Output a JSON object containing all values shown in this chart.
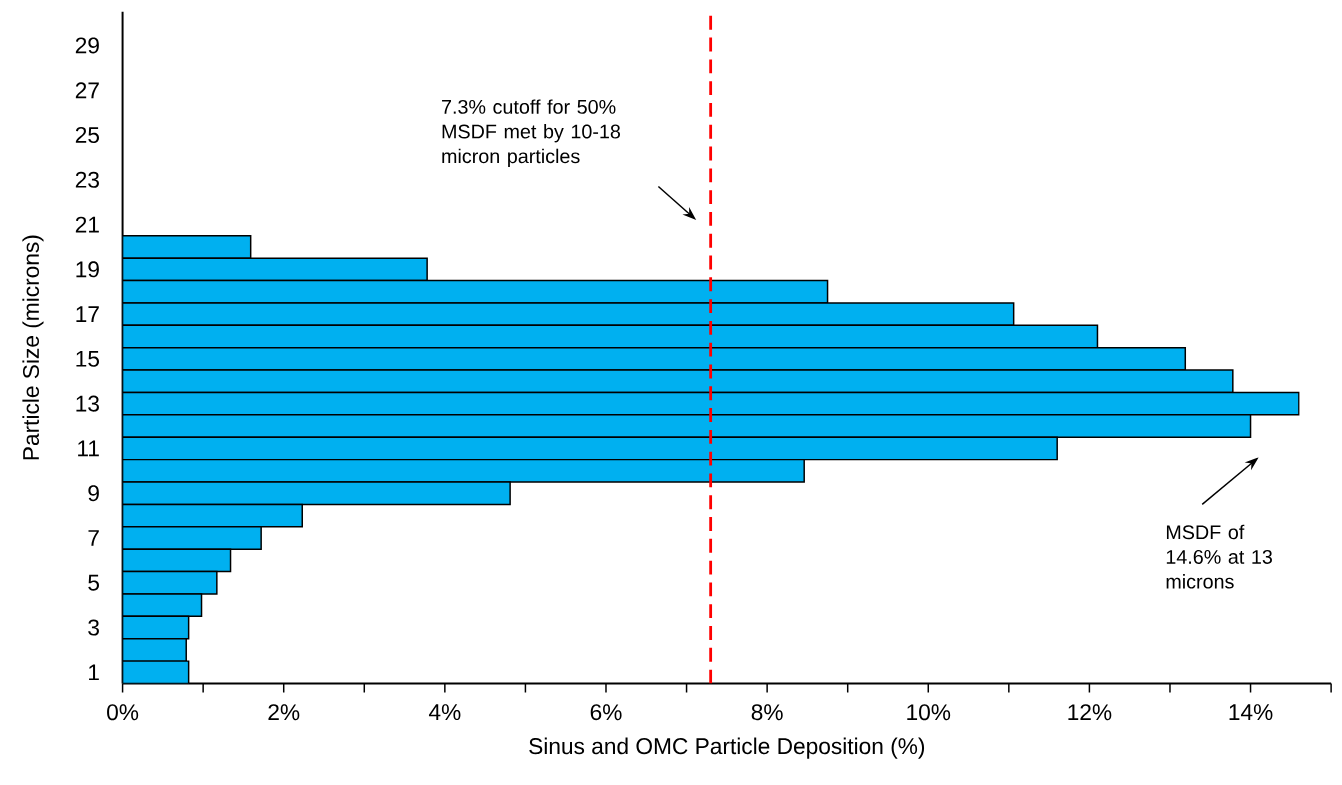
{
  "chart_data": {
    "type": "bar",
    "orientation": "horizontal",
    "xlabel": "Sinus and OMC Particle Deposition (%)",
    "ylabel": "Particle Size (microns)",
    "categories": [
      null,
      "29",
      null,
      "27",
      null,
      "25",
      null,
      "23",
      null,
      "21",
      null,
      "19",
      null,
      "17",
      null,
      "15",
      null,
      "13",
      null,
      "11",
      null,
      "9",
      null,
      "7",
      null,
      "5",
      null,
      "3",
      null,
      "1"
    ],
    "values": [
      0,
      0,
      null,
      null,
      null,
      0,
      null,
      null,
      null,
      null,
      1.59,
      3.78,
      8.75,
      11.06,
      12.1,
      13.19,
      13.78,
      14.6,
      14.0,
      11.6,
      8.46,
      4.81,
      2.23,
      1.72,
      1.34,
      1.17,
      0.98,
      0.82,
      0.79,
      0.82
    ],
    "color": "#00b0f0",
    "xlim": [
      0,
      15
    ],
    "xticks": [
      {
        "value": 0,
        "label": "0%"
      },
      {
        "value": 1,
        "label": null
      },
      {
        "value": 2,
        "label": "2%"
      },
      {
        "value": 3,
        "label": null
      },
      {
        "value": 4,
        "label": "4%"
      },
      {
        "value": 5,
        "label": null
      },
      {
        "value": 6,
        "label": "6%"
      },
      {
        "value": 7,
        "label": null
      },
      {
        "value": 8,
        "label": "8%"
      },
      {
        "value": 9,
        "label": null
      },
      {
        "value": 10,
        "label": "10%"
      },
      {
        "value": 11,
        "label": null
      },
      {
        "value": 12,
        "label": "12%"
      },
      {
        "value": 13,
        "label": null
      },
      {
        "value": 14,
        "label": "14%"
      },
      {
        "value": 15,
        "label": null
      }
    ],
    "ref_lines": [
      {
        "axis": "x",
        "value": 7.3,
        "color": "#ff0000",
        "line_style": "dashed"
      }
    ],
    "annotations": [
      "7.3% cutoff for 50% MSDF met by 10-18 micron particles",
      "MSDF of 14.6% at 13 microns"
    ],
    "grid": false
  }
}
